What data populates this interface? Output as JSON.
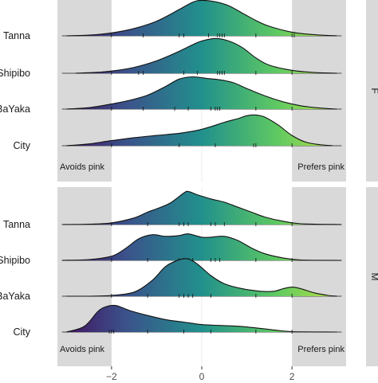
{
  "chart_data": {
    "type": "ridgeline",
    "xlim": [
      -3.2,
      3.2
    ],
    "xticks": [
      -2,
      0,
      2
    ],
    "xtick_labels": [
      "−2",
      "0",
      "2"
    ],
    "shaded_regions": [
      [
        -3.2,
        -2
      ],
      [
        2,
        3.2
      ]
    ],
    "gradient_colors": [
      "#440154",
      "#3b528b",
      "#21908c",
      "#5ec962",
      "#a9dc4a"
    ],
    "annotations": {
      "left": "Avoids pink",
      "right": "Prefers pink"
    },
    "panels": [
      {
        "strip": "F",
        "categories": [
          {
            "name": "Tanna",
            "density": [
              [
                -3.0,
                0
              ],
              [
                -2.5,
                0.02
              ],
              [
                -2.0,
                0.08
              ],
              [
                -1.5,
                0.2
              ],
              [
                -1.0,
                0.4
              ],
              [
                -0.5,
                0.72
              ],
              [
                -0.2,
                0.92
              ],
              [
                0.0,
                0.97
              ],
              [
                0.3,
                0.93
              ],
              [
                0.6,
                0.82
              ],
              [
                0.9,
                0.62
              ],
              [
                1.2,
                0.42
              ],
              [
                1.5,
                0.26
              ],
              [
                2.0,
                0.1
              ],
              [
                2.5,
                0.03
              ],
              [
                3.0,
                0
              ]
            ],
            "rugs": [
              -2.0,
              -1.3,
              -0.5,
              -0.4,
              0.15,
              0.35,
              0.4,
              0.45,
              0.5,
              1.2,
              2.0,
              2.05
            ]
          },
          {
            "name": "Shipibo",
            "density": [
              [
                -2.8,
                0
              ],
              [
                -2.4,
                0.02
              ],
              [
                -2.0,
                0.06
              ],
              [
                -1.5,
                0.16
              ],
              [
                -1.0,
                0.34
              ],
              [
                -0.5,
                0.6
              ],
              [
                -0.2,
                0.78
              ],
              [
                0.0,
                0.88
              ],
              [
                0.3,
                0.95
              ],
              [
                0.6,
                0.88
              ],
              [
                0.9,
                0.7
              ],
              [
                1.2,
                0.42
              ],
              [
                1.5,
                0.22
              ],
              [
                2.0,
                0.08
              ],
              [
                2.5,
                0.02
              ],
              [
                3.0,
                0
              ]
            ],
            "rugs": [
              -2.0,
              -1.4,
              -1.3,
              -0.4,
              -0.1,
              0.35,
              0.4,
              0.45,
              0.5,
              1.2,
              2.0
            ]
          },
          {
            "name": "BaYaka",
            "density": [
              [
                -3.0,
                0
              ],
              [
                -2.5,
                0.04
              ],
              [
                -2.0,
                0.14
              ],
              [
                -1.6,
                0.24
              ],
              [
                -1.2,
                0.38
              ],
              [
                -0.8,
                0.62
              ],
              [
                -0.5,
                0.82
              ],
              [
                -0.2,
                0.88
              ],
              [
                0.1,
                0.84
              ],
              [
                0.4,
                0.8
              ],
              [
                0.7,
                0.72
              ],
              [
                1.0,
                0.56
              ],
              [
                1.4,
                0.36
              ],
              [
                1.8,
                0.2
              ],
              [
                2.2,
                0.09
              ],
              [
                2.6,
                0.03
              ],
              [
                3.0,
                0
              ]
            ],
            "rugs": [
              -2.0,
              -1.3,
              -0.6,
              -0.3,
              0.2,
              0.3,
              0.35,
              0.4,
              1.2,
              2.0
            ]
          },
          {
            "name": "City",
            "density": [
              [
                -3.0,
                0
              ],
              [
                -2.5,
                0.05
              ],
              [
                -2.0,
                0.14
              ],
              [
                -1.5,
                0.22
              ],
              [
                -1.0,
                0.28
              ],
              [
                -0.5,
                0.34
              ],
              [
                -0.1,
                0.42
              ],
              [
                0.2,
                0.52
              ],
              [
                0.5,
                0.64
              ],
              [
                0.8,
                0.74
              ],
              [
                1.0,
                0.82
              ],
              [
                1.2,
                0.84
              ],
              [
                1.4,
                0.78
              ],
              [
                1.7,
                0.56
              ],
              [
                2.0,
                0.28
              ],
              [
                2.3,
                0.1
              ],
              [
                2.6,
                0.03
              ],
              [
                2.9,
                0
              ]
            ],
            "rugs": [
              -2.0,
              -0.5,
              0.3,
              1.15,
              1.2,
              2.0
            ]
          }
        ]
      },
      {
        "strip": "M",
        "categories": [
          {
            "name": "Tanna",
            "density": [
              [
                -3.1,
                0
              ],
              [
                -2.5,
                0.01
              ],
              [
                -2.0,
                0.04
              ],
              [
                -1.5,
                0.16
              ],
              [
                -1.2,
                0.3
              ],
              [
                -1.0,
                0.38
              ],
              [
                -0.7,
                0.52
              ],
              [
                -0.4,
                0.76
              ],
              [
                -0.3,
                0.8
              ],
              [
                -0.1,
                0.72
              ],
              [
                0.2,
                0.62
              ],
              [
                0.5,
                0.54
              ],
              [
                0.8,
                0.42
              ],
              [
                1.1,
                0.3
              ],
              [
                1.4,
                0.18
              ],
              [
                1.8,
                0.08
              ],
              [
                2.2,
                0.02
              ],
              [
                3.1,
                0
              ]
            ],
            "rugs": [
              -2.0,
              -1.2,
              -0.5,
              -0.4,
              -0.3,
              0.2,
              0.3,
              0.5,
              1.2,
              2.0
            ]
          },
          {
            "name": "Shipibo",
            "density": [
              [
                -3.1,
                0
              ],
              [
                -2.5,
                0.02
              ],
              [
                -2.0,
                0.1
              ],
              [
                -1.7,
                0.28
              ],
              [
                -1.4,
                0.52
              ],
              [
                -1.1,
                0.62
              ],
              [
                -0.8,
                0.58
              ],
              [
                -0.5,
                0.6
              ],
              [
                -0.3,
                0.64
              ],
              [
                0.0,
                0.56
              ],
              [
                0.2,
                0.56
              ],
              [
                0.5,
                0.58
              ],
              [
                0.8,
                0.48
              ],
              [
                1.1,
                0.3
              ],
              [
                1.4,
                0.16
              ],
              [
                1.8,
                0.06
              ],
              [
                2.2,
                0.01
              ],
              [
                3.1,
                0
              ]
            ],
            "rugs": [
              -2.0,
              -1.2,
              -0.5,
              -0.4,
              -0.3,
              -0.2,
              0.2,
              0.3,
              0.4,
              1.2,
              2.0
            ]
          },
          {
            "name": "BaYaka",
            "density": [
              [
                -3.0,
                0
              ],
              [
                -2.5,
                0
              ],
              [
                -2.0,
                0.02
              ],
              [
                -1.5,
                0.1
              ],
              [
                -1.1,
                0.38
              ],
              [
                -0.8,
                0.72
              ],
              [
                -0.5,
                0.88
              ],
              [
                -0.3,
                0.9
              ],
              [
                -0.1,
                0.78
              ],
              [
                0.2,
                0.5
              ],
              [
                0.5,
                0.3
              ],
              [
                0.9,
                0.18
              ],
              [
                1.3,
                0.12
              ],
              [
                1.6,
                0.12
              ],
              [
                1.8,
                0.18
              ],
              [
                2.0,
                0.22
              ],
              [
                2.2,
                0.18
              ],
              [
                2.5,
                0.08
              ],
              [
                2.8,
                0.02
              ],
              [
                3.0,
                0
              ]
            ],
            "rugs": [
              -2.0,
              -1.2,
              -0.5,
              -0.4,
              -0.3,
              -0.2,
              0.2,
              1.2,
              2.0
            ]
          },
          {
            "name": "City",
            "density": [
              [
                -3.0,
                0
              ],
              [
                -2.6,
                0.14
              ],
              [
                -2.3,
                0.5
              ],
              [
                -2.1,
                0.62
              ],
              [
                -1.9,
                0.64
              ],
              [
                -1.6,
                0.52
              ],
              [
                -1.2,
                0.4
              ],
              [
                -0.8,
                0.3
              ],
              [
                -0.4,
                0.24
              ],
              [
                0.0,
                0.18
              ],
              [
                0.4,
                0.16
              ],
              [
                0.8,
                0.14
              ],
              [
                1.2,
                0.1
              ],
              [
                1.6,
                0.05
              ],
              [
                2.0,
                0.01
              ],
              [
                3.0,
                0
              ]
            ],
            "rugs": [
              -2.05,
              -2.0,
              -1.95,
              -1.2,
              -0.4,
              0.2,
              1.2,
              2.0
            ]
          }
        ]
      }
    ]
  }
}
